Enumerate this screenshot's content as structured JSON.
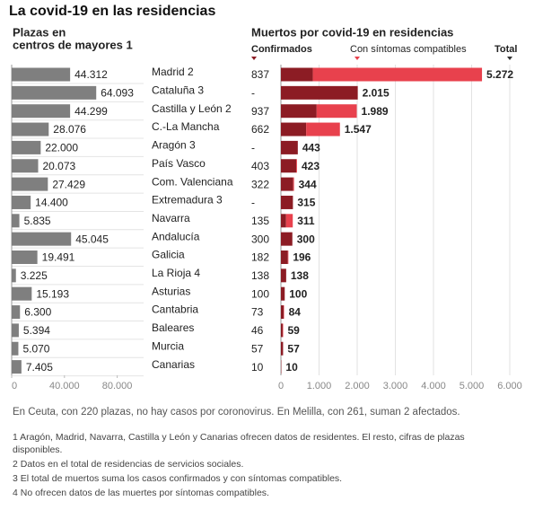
{
  "title": "La covid-19 en las residencias",
  "chart_data": [
    {
      "type": "hbar",
      "title": [
        "Plazas en",
        "centros de mayores 1"
      ],
      "color": "#7f7f7f",
      "categories": [
        "Madrid 2",
        "Cataluña 3",
        "Castilla y León 2",
        "C.-La Mancha",
        "Aragón 3",
        "País Vasco",
        "Com. Valenciana",
        "Extremadura 3",
        "Navarra",
        "Andalucía",
        "Galicia",
        "La Rioja 4",
        "Asturias",
        "Cantabria",
        "Baleares",
        "Murcia",
        "Canarias"
      ],
      "values": [
        44312,
        64093,
        44299,
        28076,
        22000,
        20073,
        27429,
        14400,
        5835,
        45045,
        19491,
        3225,
        15193,
        6300,
        5394,
        5070,
        7405
      ],
      "value_labels": [
        "44.312",
        "64.093",
        "44.299",
        "28.076",
        "22.000",
        "20.073",
        "27.429",
        "14.400",
        "5.835",
        "45.045",
        "19.491",
        "3.225",
        "15.193",
        "6.300",
        "5.394",
        "5.070",
        "7.405"
      ],
      "xlim": [
        0,
        100000
      ],
      "xticks": [
        0,
        {
          "value": 40000,
          "label": "40.000"
        },
        {
          "value": 80000,
          "label": "80.000"
        }
      ]
    },
    {
      "type": "stacked_hbar",
      "title": "Muertos por covid-19 en residencias",
      "series": [
        {
          "name": "Confirmados",
          "color": "#8c1c24",
          "values": [
            837,
            null,
            937,
            662,
            null,
            403,
            322,
            null,
            135,
            300,
            182,
            138,
            100,
            73,
            46,
            57,
            10
          ],
          "value_labels": [
            "837",
            "-",
            "937",
            "662",
            "-",
            "403",
            "322",
            "-",
            "135",
            "300",
            "182",
            "138",
            "100",
            "73",
            "46",
            "57",
            "10"
          ]
        },
        {
          "name": "Con síntomas compatibles",
          "color": "#e8414d",
          "values": [
            4435,
            null,
            1052,
            885,
            null,
            20,
            22,
            null,
            176,
            0,
            14,
            0,
            0,
            11,
            13,
            0,
            0
          ]
        }
      ],
      "totals": {
        "name": "Total",
        "values": [
          5272,
          2015,
          1989,
          1547,
          443,
          423,
          344,
          315,
          311,
          300,
          196,
          138,
          100,
          84,
          59,
          57,
          10
        ],
        "value_labels": [
          "5.272",
          "2.015",
          "1.989",
          "1.547",
          "443",
          "423",
          "344",
          "315",
          "311",
          "300",
          "196",
          "138",
          "100",
          "84",
          "59",
          "57",
          "10"
        ]
      },
      "xlim": [
        0,
        6000
      ],
      "xticks": [
        0,
        {
          "value": 1000,
          "label": "1.000"
        },
        {
          "value": 2000,
          "label": "2.000"
        },
        {
          "value": 3000,
          "label": "3.000"
        },
        {
          "value": 4000,
          "label": "4.000"
        },
        {
          "value": 5000,
          "label": "5.000"
        },
        {
          "value": 6000,
          "label": "6.000"
        }
      ],
      "grid": true
    }
  ],
  "notes": [
    "En Ceuta, con 220 plazas, no hay casos por coronovirus. En Melilla, con 261, suman 2 afectados.",
    "1 Aragón, Madrid, Navarra, Castilla y León y Canarias ofrecen datos de residentes. El resto, cifras de plazas disponibles.",
    "2 Datos en el total de residencias de servicios sociales.",
    "3 El total de muertos suma los casos confirmados y con síntomas compatibles.",
    "4 No ofrecen datos de las muertes por síntomas compatibles."
  ]
}
